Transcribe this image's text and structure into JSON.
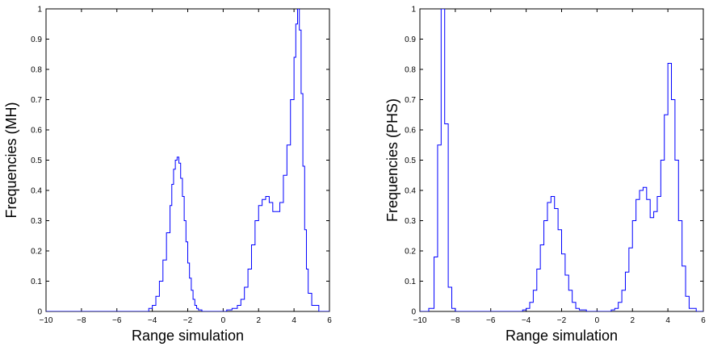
{
  "chart_data": [
    {
      "type": "histogram",
      "title": "",
      "xlabel": "Range simulation",
      "ylabel": "Frequencies (MH)",
      "xlim": [
        -10,
        6
      ],
      "ylim": [
        0,
        1
      ],
      "xticks": [
        -10,
        -8,
        -6,
        -4,
        -2,
        0,
        2,
        4,
        6
      ],
      "yticks": [
        0,
        0.1,
        0.2,
        0.3,
        0.4,
        0.5,
        0.6,
        0.7,
        0.8,
        0.9,
        1
      ],
      "grid": false,
      "line_color": "#0000ff",
      "series": [
        {
          "x": [
            -10,
            -4.5,
            -4.2,
            -4.0,
            -3.8,
            -3.6,
            -3.4,
            -3.2,
            -3.0,
            -2.9,
            -2.8,
            -2.7,
            -2.6,
            -2.5,
            -2.4,
            -2.3,
            -2.2,
            -2.1,
            -2.0,
            -1.9,
            -1.8,
            -1.7,
            -1.6,
            -1.5,
            -1.4,
            -1.2,
            -1.0,
            -0.6,
            0.2,
            0.5,
            0.8,
            1.0,
            1.2,
            1.4,
            1.6,
            1.8,
            2.0,
            2.2,
            2.4,
            2.6,
            2.8,
            3.0,
            3.2,
            3.4,
            3.6,
            3.8,
            4.0,
            4.1,
            4.2,
            4.3,
            4.4,
            4.5,
            4.6,
            4.7,
            4.8,
            5.0,
            5.4,
            6
          ],
          "y": [
            0,
            0,
            0.01,
            0.02,
            0.05,
            0.1,
            0.17,
            0.26,
            0.35,
            0.42,
            0.47,
            0.5,
            0.51,
            0.49,
            0.44,
            0.38,
            0.3,
            0.23,
            0.16,
            0.11,
            0.07,
            0.04,
            0.02,
            0.01,
            0.005,
            0,
            0,
            0,
            0.005,
            0.01,
            0.02,
            0.04,
            0.08,
            0.14,
            0.22,
            0.3,
            0.35,
            0.37,
            0.38,
            0.36,
            0.33,
            0.33,
            0.36,
            0.45,
            0.55,
            0.7,
            0.84,
            0.95,
            1.0,
            0.93,
            0.72,
            0.48,
            0.27,
            0.14,
            0.06,
            0.02,
            0,
            0
          ]
        }
      ]
    },
    {
      "type": "histogram",
      "title": "",
      "xlabel": "Range simulation",
      "ylabel": "Frequencies (PHS)",
      "xlim": [
        -10,
        6
      ],
      "ylim": [
        0,
        1
      ],
      "xticks": [
        -10,
        -8,
        -6,
        -4,
        -2,
        0,
        2,
        4,
        6
      ],
      "yticks": [
        0,
        0.1,
        0.2,
        0.3,
        0.4,
        0.5,
        0.6,
        0.7,
        0.8,
        0.9,
        1
      ],
      "grid": false,
      "line_color": "#0000ff",
      "series": [
        {
          "x": [
            -10,
            -9.5,
            -9.2,
            -9.0,
            -8.8,
            -8.6,
            -8.4,
            -8.2,
            -8.0,
            -7.6,
            -4.2,
            -4.0,
            -3.8,
            -3.6,
            -3.4,
            -3.2,
            -3.0,
            -2.8,
            -2.6,
            -2.4,
            -2.2,
            -2.0,
            -1.8,
            -1.6,
            -1.4,
            -1.2,
            -1.0,
            -0.6,
            0.8,
            1.0,
            1.2,
            1.4,
            1.6,
            1.8,
            2.0,
            2.2,
            2.4,
            2.6,
            2.8,
            3.0,
            3.2,
            3.4,
            3.6,
            3.8,
            4.0,
            4.2,
            4.4,
            4.6,
            4.8,
            5.0,
            5.2,
            5.6,
            6
          ],
          "y": [
            0,
            0.01,
            0.18,
            0.55,
            1.0,
            0.62,
            0.08,
            0.01,
            0,
            0,
            0.005,
            0.01,
            0.03,
            0.07,
            0.14,
            0.22,
            0.3,
            0.36,
            0.38,
            0.34,
            0.27,
            0.19,
            0.12,
            0.07,
            0.03,
            0.01,
            0.005,
            0,
            0.005,
            0.01,
            0.03,
            0.07,
            0.13,
            0.21,
            0.3,
            0.37,
            0.4,
            0.41,
            0.37,
            0.31,
            0.33,
            0.38,
            0.5,
            0.65,
            0.82,
            0.7,
            0.5,
            0.3,
            0.15,
            0.05,
            0.01,
            0,
            0
          ]
        }
      ]
    }
  ]
}
